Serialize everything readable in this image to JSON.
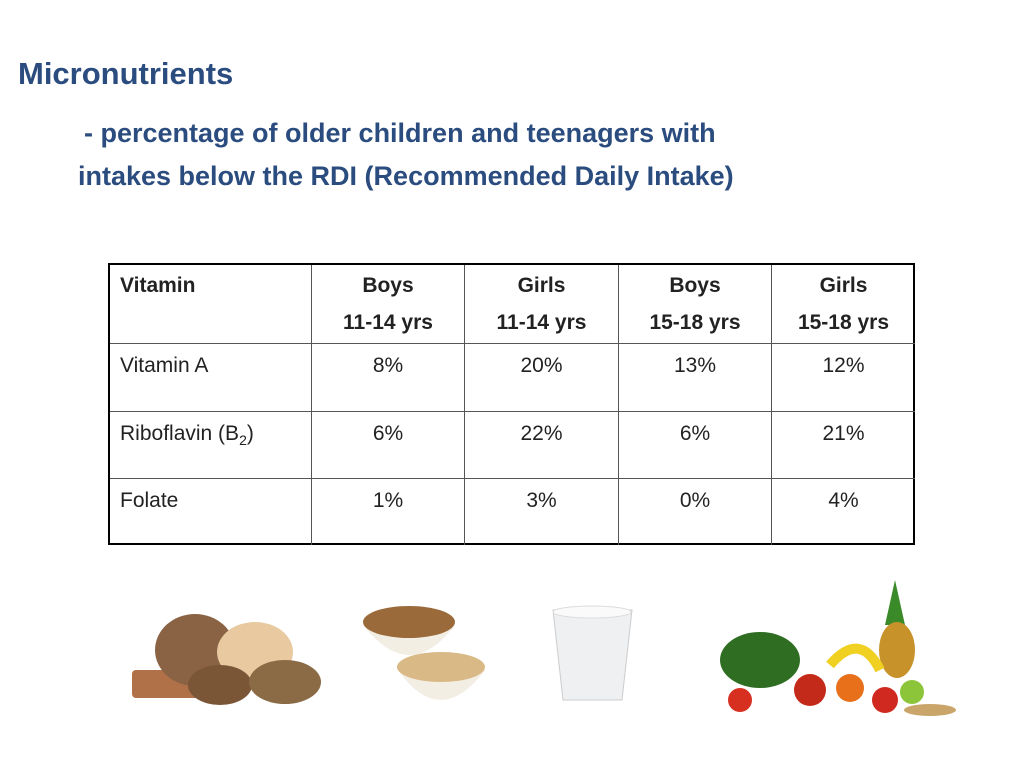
{
  "title": "Micronutrients",
  "subtitle": [
    "- percentage of older children and teenagers with",
    "intakes below the RDI (Recommended Daily Intake)"
  ],
  "table": {
    "headers": [
      [
        "Vitamin"
      ],
      [
        "Boys",
        "11-14 yrs"
      ],
      [
        "Girls",
        "11-14 yrs"
      ],
      [
        "Boys",
        "15-18 yrs"
      ],
      [
        "Girls",
        "15-18 yrs"
      ]
    ],
    "rows": [
      {
        "label": {
          "text": "Vitamin A"
        },
        "values": [
          "8%",
          "20%",
          "13%",
          "12%"
        ]
      },
      {
        "label": {
          "text": "Riboflavin (B",
          "sub": "2",
          "after": ")"
        },
        "values": [
          "6%",
          "22%",
          "6%",
          "21%"
        ]
      },
      {
        "label": {
          "text": "Folate"
        },
        "values": [
          "1%",
          "3%",
          "0%",
          "4%"
        ]
      }
    ]
  }
}
